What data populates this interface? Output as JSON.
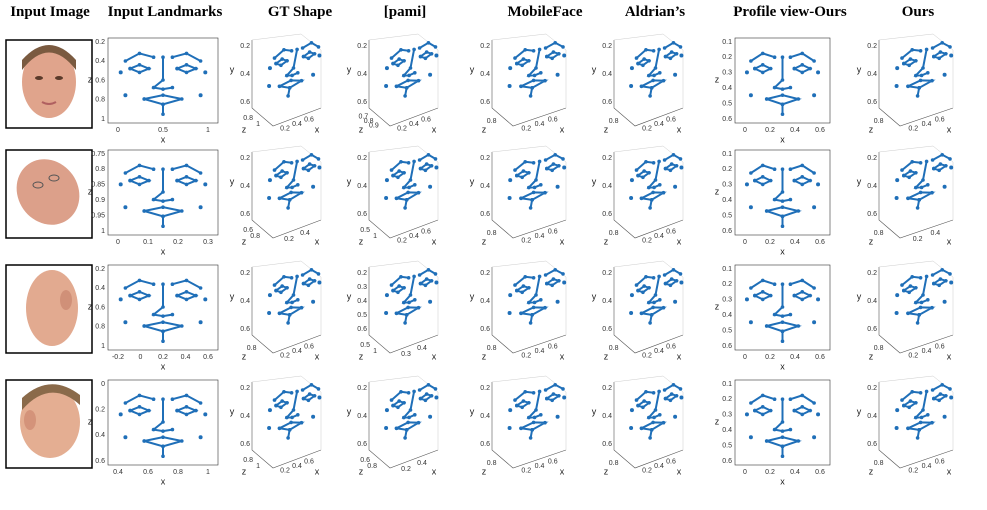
{
  "headers": [
    "Input Image",
    "Input Landmarks",
    "GT Shape",
    "[pami]",
    "MobileFace",
    "Aldrian’s",
    "Profile view-Ours",
    "Ours"
  ],
  "rows": [
    {
      "panels": [
        {
          "type": "2d",
          "yticks": [
            "0.2",
            "0.4",
            "0.6",
            "0.8",
            "1"
          ],
          "xticks": [
            "0",
            "0.5",
            "1"
          ],
          "ylabel": "z",
          "xlabel": "x"
        },
        {
          "type": "3d",
          "yticks": [
            "0.2",
            "0.4",
            "0.6"
          ],
          "zticks": [
            "0.8",
            "1"
          ],
          "xticks": [
            "0.2",
            "0.4",
            "0.6"
          ],
          "ylabel": "y",
          "zlabel": "z",
          "xlabel": "x"
        },
        {
          "type": "3d",
          "yticks": [
            "0.2",
            "0.4",
            "0.6"
          ],
          "zticks": [
            "0.7",
            "0.8",
            "0.9"
          ],
          "xticks": [
            "0.2",
            "0.4",
            "0.6"
          ],
          "ylabel": "y",
          "zlabel": "z",
          "xlabel": "x"
        },
        {
          "type": "3d",
          "yticks": [
            "0.2",
            "0.4",
            "0.6"
          ],
          "zticks": [
            "0.8"
          ],
          "xticks": [
            "0.2",
            "0.4",
            "0.6"
          ],
          "ylabel": "y",
          "zlabel": "z",
          "xlabel": "x"
        },
        {
          "type": "3d",
          "yticks": [
            "0.2",
            "0.4",
            "0.6"
          ],
          "zticks": [
            "0.8"
          ],
          "xticks": [
            "0.2",
            "0.4",
            "0.6"
          ],
          "ylabel": "y",
          "zlabel": "z",
          "xlabel": "x"
        },
        {
          "type": "2d",
          "yticks": [
            "0.1",
            "0.2",
            "0.3",
            "0.4",
            "0.5",
            "0.6"
          ],
          "xticks": [
            "0",
            "0.2",
            "0.4",
            "0.6"
          ],
          "ylabel": "z",
          "xlabel": "x"
        },
        {
          "type": "3d",
          "yticks": [
            "0.2",
            "0.4",
            "0.6"
          ],
          "zticks": [
            "0.8"
          ],
          "xticks": [
            "0.2",
            "0.4",
            "0.6"
          ],
          "ylabel": "y",
          "zlabel": "z",
          "xlabel": "x"
        }
      ]
    },
    {
      "panels": [
        {
          "type": "2d",
          "yticks": [
            "0.75",
            "0.8",
            "0.85",
            "0.9",
            "0.95",
            "1"
          ],
          "xticks": [
            "0",
            "0.1",
            "0.2",
            "0.3"
          ],
          "ylabel": "z",
          "xlabel": "x"
        },
        {
          "type": "3d",
          "yticks": [
            "0.2",
            "0.4",
            "0.6"
          ],
          "zticks": [
            "0.6",
            "0.8"
          ],
          "xticks": [
            "0.2",
            "0.4"
          ],
          "ylabel": "y",
          "zlabel": "z",
          "xlabel": "x"
        },
        {
          "type": "3d",
          "yticks": [
            "0.2",
            "0.4",
            "0.6"
          ],
          "zticks": [
            "0.5",
            "1"
          ],
          "xticks": [
            "0.2",
            "0.4",
            "0.6"
          ],
          "ylabel": "y",
          "zlabel": "z",
          "xlabel": "x"
        },
        {
          "type": "3d",
          "yticks": [
            "0.2",
            "0.4",
            "0.6"
          ],
          "zticks": [
            "0.8"
          ],
          "xticks": [
            "0.2",
            "0.4",
            "0.6"
          ],
          "ylabel": "y",
          "zlabel": "z",
          "xlabel": "x"
        },
        {
          "type": "3d",
          "yticks": [
            "0.2",
            "0.4",
            "0.6"
          ],
          "zticks": [
            "0.8"
          ],
          "xticks": [
            "0.2",
            "0.4",
            "0.6"
          ],
          "ylabel": "y",
          "zlabel": "z",
          "xlabel": "x"
        },
        {
          "type": "2d",
          "yticks": [
            "0.1",
            "0.2",
            "0.3",
            "0.4",
            "0.5",
            "0.6"
          ],
          "xticks": [
            "0",
            "0.2",
            "0.4",
            "0.6"
          ],
          "ylabel": "z",
          "xlabel": "x"
        },
        {
          "type": "3d",
          "yticks": [
            "0.2",
            "0.4",
            "0.6"
          ],
          "zticks": [
            "0.8"
          ],
          "xticks": [
            "0.2",
            "0.4"
          ],
          "ylabel": "y",
          "zlabel": "z",
          "xlabel": "x"
        }
      ]
    },
    {
      "panels": [
        {
          "type": "2d",
          "yticks": [
            "0.2",
            "0.4",
            "0.6",
            "0.8",
            "1"
          ],
          "xticks": [
            "-0.2",
            "0",
            "0.2",
            "0.4",
            "0.6"
          ],
          "ylabel": "z",
          "xlabel": "x"
        },
        {
          "type": "3d",
          "yticks": [
            "0.2",
            "0.4",
            "0.6"
          ],
          "zticks": [
            "0.8"
          ],
          "xticks": [
            "0.2",
            "0.4",
            "0.6"
          ],
          "ylabel": "y",
          "zlabel": "z",
          "xlabel": "x"
        },
        {
          "type": "3d",
          "yticks": [
            "0.2",
            "0.3",
            "0.4",
            "0.5",
            "0.6"
          ],
          "zticks": [
            "0.5",
            "1"
          ],
          "xticks": [
            "0.3",
            "0.4"
          ],
          "ylabel": "y",
          "zlabel": "z",
          "xlabel": "x"
        },
        {
          "type": "3d",
          "yticks": [
            "0.2",
            "0.4",
            "0.6"
          ],
          "zticks": [
            "0.8"
          ],
          "xticks": [
            "0.2",
            "0.4",
            "0.6"
          ],
          "ylabel": "y",
          "zlabel": "z",
          "xlabel": "x"
        },
        {
          "type": "3d",
          "yticks": [
            "0.2",
            "0.4",
            "0.6"
          ],
          "zticks": [
            "0.8"
          ],
          "xticks": [
            "0.2",
            "0.4",
            "0.6"
          ],
          "ylabel": "y",
          "zlabel": "z",
          "xlabel": "x"
        },
        {
          "type": "2d",
          "yticks": [
            "0.1",
            "0.2",
            "0.3",
            "0.4",
            "0.5",
            "0.6"
          ],
          "xticks": [
            "0",
            "0.2",
            "0.4",
            "0.6"
          ],
          "ylabel": "z",
          "xlabel": "x"
        },
        {
          "type": "3d",
          "yticks": [
            "0.2",
            "0.4",
            "0.6"
          ],
          "zticks": [
            "0.8"
          ],
          "xticks": [
            "0.2",
            "0.4",
            "0.6"
          ],
          "ylabel": "y",
          "zlabel": "z",
          "xlabel": "x"
        }
      ]
    },
    {
      "panels": [
        {
          "type": "2d",
          "yticks": [
            "0",
            "0.2",
            "0.4",
            "0.6"
          ],
          "xticks": [
            "0.4",
            "0.6",
            "0.8",
            "1"
          ],
          "ylabel": "z",
          "xlabel": "x"
        },
        {
          "type": "3d",
          "yticks": [
            "0.2",
            "0.4",
            "0.6"
          ],
          "zticks": [
            "0.8",
            "1"
          ],
          "xticks": [
            "0.2",
            "0.4",
            "0.6"
          ],
          "ylabel": "y",
          "zlabel": "z",
          "xlabel": "x"
        },
        {
          "type": "3d",
          "yticks": [
            "0.2",
            "0.4",
            "0.6"
          ],
          "zticks": [
            "0.6",
            "0.8"
          ],
          "xticks": [
            "0.2",
            "0.4"
          ],
          "ylabel": "y",
          "zlabel": "z",
          "xlabel": "x"
        },
        {
          "type": "3d",
          "yticks": [
            "0.2",
            "0.4",
            "0.6"
          ],
          "zticks": [
            "0.8"
          ],
          "xticks": [
            "0.2",
            "0.4",
            "0.6"
          ],
          "ylabel": "y",
          "zlabel": "z",
          "xlabel": "x"
        },
        {
          "type": "3d",
          "yticks": [
            "0.2",
            "0.4",
            "0.6"
          ],
          "zticks": [
            "0.8"
          ],
          "xticks": [
            "0.2",
            "0.4",
            "0.6"
          ],
          "ylabel": "y",
          "zlabel": "z",
          "xlabel": "x"
        },
        {
          "type": "2d",
          "yticks": [
            "0.1",
            "0.2",
            "0.3",
            "0.4",
            "0.5",
            "0.6"
          ],
          "xticks": [
            "0",
            "0.2",
            "0.4",
            "0.6"
          ],
          "ylabel": "z",
          "xlabel": "x"
        },
        {
          "type": "3d",
          "yticks": [
            "0.2",
            "0.4",
            "0.6"
          ],
          "zticks": [
            "0.8"
          ],
          "xticks": [
            "0.2",
            "0.4",
            "0.6"
          ],
          "ylabel": "y",
          "zlabel": "z",
          "xlabel": "x"
        }
      ]
    }
  ]
}
